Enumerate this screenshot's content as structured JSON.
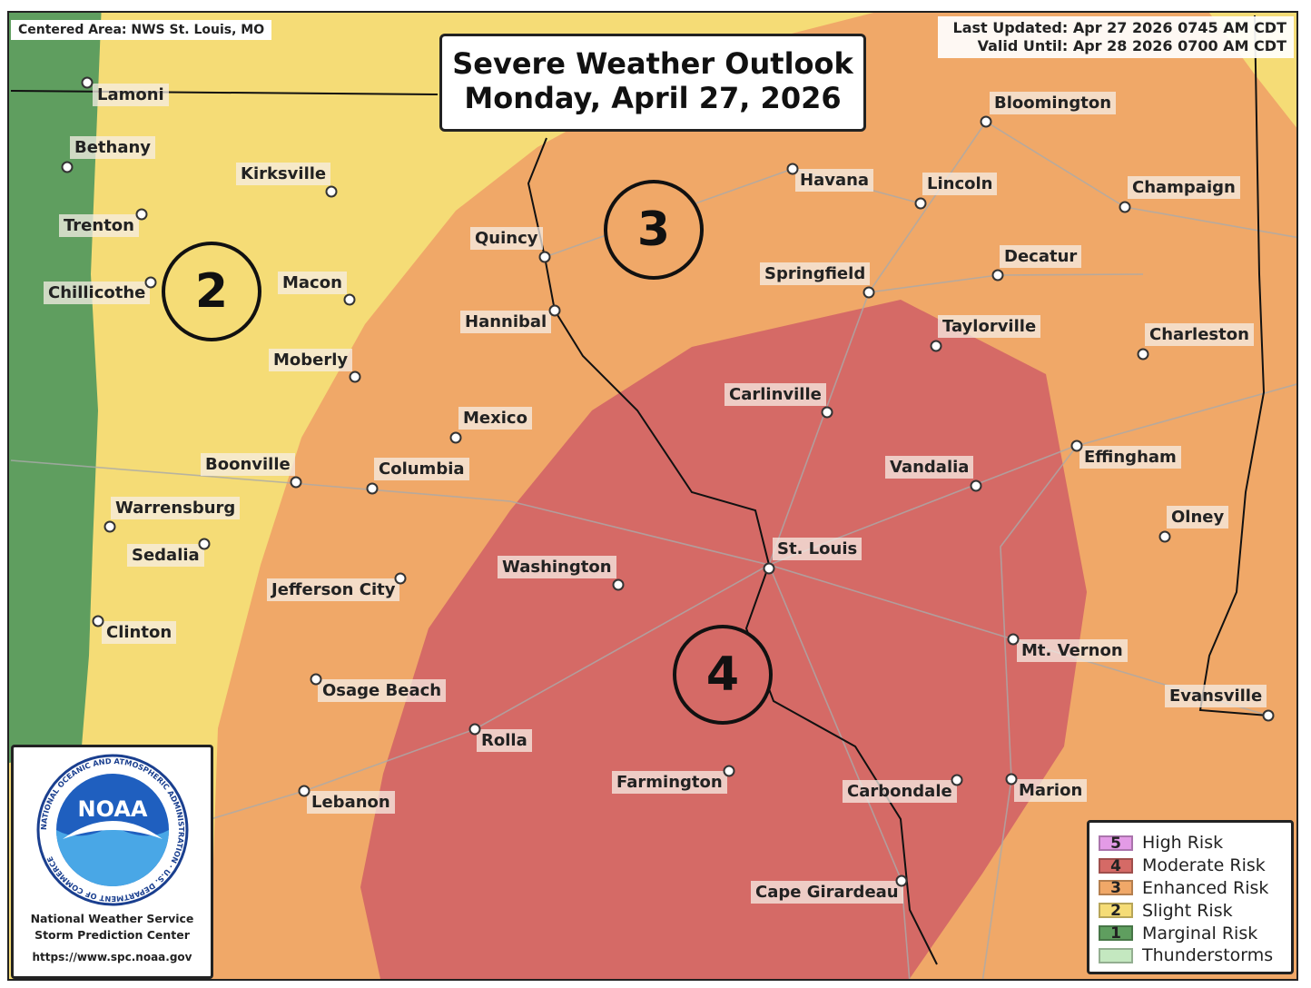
{
  "header": {
    "title_line1": "Severe Weather Outlook",
    "title_line2": "Monday, April 27, 2026",
    "centered_area": "Centered Area: NWS St. Louis, MO",
    "last_updated": "Last Updated: Apr 27 2026 0745 AM CDT",
    "valid_until": "Valid Until: Apr 28 2026 0700 AM CDT"
  },
  "risk_labels": [
    "2",
    "3",
    "4"
  ],
  "cities": [
    "Lamoni",
    "Bethany",
    "Kirksville",
    "Trenton",
    "Chillicothe",
    "Macon",
    "Moberly",
    "Quincy",
    "Hannibal",
    "Mexico",
    "Boonville",
    "Columbia",
    "Warrensburg",
    "Sedalia",
    "Jefferson City",
    "Clinton",
    "Osage Beach",
    "Rolla",
    "Lebanon",
    "Washington",
    "Farmington",
    "Carbondale",
    "Cape Girardeau",
    "St. Louis",
    "Havana",
    "Lincoln",
    "Bloomington",
    "Champaign",
    "Decatur",
    "Springfield",
    "Taylorville",
    "Charleston",
    "Carlinville",
    "Vandalia",
    "Effingham",
    "Olney",
    "Mt. Vernon",
    "Evansville",
    "Marion"
  ],
  "legend": [
    {
      "num": "5",
      "label": "High Risk",
      "color": "#e39be6"
    },
    {
      "num": "4",
      "label": "Moderate Risk",
      "color": "#d56a66"
    },
    {
      "num": "3",
      "label": "Enhanced Risk",
      "color": "#f0a868"
    },
    {
      "num": "2",
      "label": "Slight Risk",
      "color": "#f5dc76"
    },
    {
      "num": "1",
      "label": "Marginal Risk",
      "color": "#5f9e5f"
    },
    {
      "num": "",
      "label": "Thunderstorms",
      "color": "#c4e8c0"
    }
  ],
  "noaa": {
    "logo_text": "NOAA",
    "ring_text": "NATIONAL OCEANIC AND ATMOSPHERIC ADMINISTRATION · U.S. DEPARTMENT OF COMMERCE",
    "line1": "National Weather Service",
    "line2": "Storm Prediction Center",
    "url": "https://www.spc.noaa.gov"
  }
}
